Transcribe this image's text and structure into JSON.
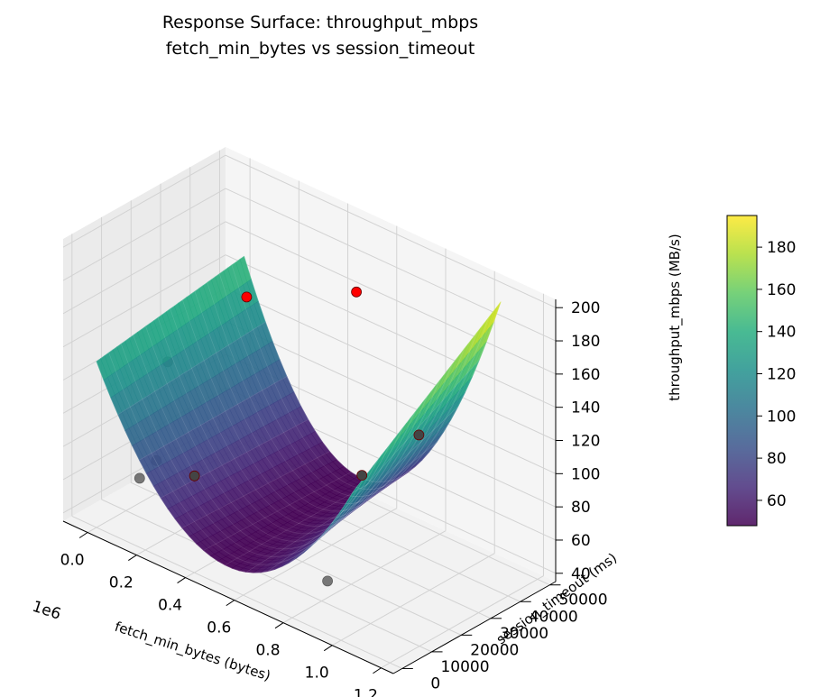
{
  "chart_data": {
    "type": "surface3d",
    "title": "Response Surface: throughput_mbps",
    "subtitle": "fetch_min_bytes vs session_timeout",
    "xlabel": "fetch_min_bytes (bytes)",
    "ylabel": "session_timeout (ms)",
    "zlabel": "throughput_mbps (MB/s)",
    "x_offset_label": "1e6",
    "x_ticks": [
      "0.0",
      "0.2",
      "0.4",
      "0.6",
      "0.8",
      "1.0",
      "1.2"
    ],
    "y_ticks": [
      "0",
      "10000",
      "20000",
      "30000",
      "40000",
      "50000"
    ],
    "z_ticks": [
      "40",
      "60",
      "80",
      "100",
      "120",
      "140",
      "160",
      "180",
      "200"
    ],
    "xlim": [
      -0.1,
      1.25
    ],
    "ylim": [
      -3000,
      52000
    ],
    "zlim": [
      35,
      205
    ],
    "surface": {
      "x_range": [
        0.0,
        1.05
      ],
      "y_range": [
        0,
        50000
      ],
      "corner_values": {
        "x0_y0": 135,
        "x1_y0": 128,
        "x0_y1": 148,
        "x1_y1": 192
      },
      "min_value": 48,
      "colormap": "viridis"
    },
    "colorbar": {
      "min": 48,
      "max": 195,
      "ticks": [
        "60",
        "80",
        "100",
        "120",
        "140",
        "160",
        "180"
      ]
    },
    "points": [
      {
        "x": 0.3,
        "y": 26000,
        "z": 168,
        "color": "#ff0000"
      },
      {
        "x": 0.58,
        "y": 40000,
        "z": 176,
        "color": "#ff0000"
      },
      {
        "x": 0.05,
        "y": 20000,
        "z": 118,
        "color": "#444444"
      },
      {
        "x": 0.1,
        "y": 12000,
        "z": 70,
        "color": "#444444"
      },
      {
        "x": 0.08,
        "y": 8000,
        "z": 62,
        "color": "#444444"
      },
      {
        "x": 0.28,
        "y": 10000,
        "z": 75,
        "color": "#444444"
      },
      {
        "x": 0.82,
        "y": 22000,
        "z": 100,
        "color": "#444444"
      },
      {
        "x": 0.92,
        "y": 33000,
        "z": 120,
        "color": "#444444"
      },
      {
        "x": 0.8,
        "y": 12000,
        "z": 45,
        "color": "#444444"
      }
    ]
  }
}
